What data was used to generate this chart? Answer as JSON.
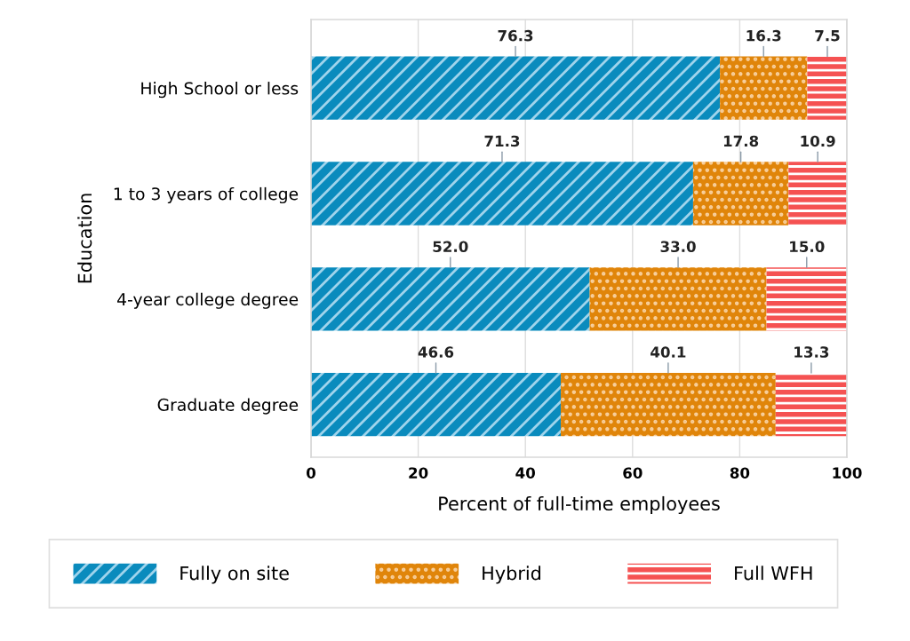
{
  "chart_data": {
    "type": "bar",
    "orientation": "horizontal",
    "stacked": true,
    "xlabel": "Percent of full-time employees",
    "ylabel": "Education",
    "categories": [
      "High School or less",
      "1 to 3 years of college",
      "4-year college degree",
      "Graduate degree"
    ],
    "series": [
      {
        "name": "Fully on site",
        "color": "#0a8bbd",
        "values": [
          76.3,
          71.3,
          52.0,
          46.6
        ],
        "value_labels": [
          "76.3",
          "71.3",
          "52.0",
          "46.6"
        ]
      },
      {
        "name": "Hybrid",
        "color": "#e0850a",
        "values": [
          16.3,
          17.8,
          33.0,
          40.1
        ],
        "value_labels": [
          "16.3",
          "17.8",
          "33.0",
          "40.1"
        ]
      },
      {
        "name": "Full WFH",
        "color": "#f55252",
        "values": [
          7.5,
          10.9,
          15.0,
          13.3
        ],
        "value_labels": [
          "7.5",
          "10.9",
          "15.0",
          "13.3"
        ]
      }
    ],
    "xlim": [
      0,
      100
    ],
    "xticks": [
      0,
      20,
      40,
      60,
      80,
      100
    ],
    "grid": "x",
    "legend": "bottom"
  }
}
